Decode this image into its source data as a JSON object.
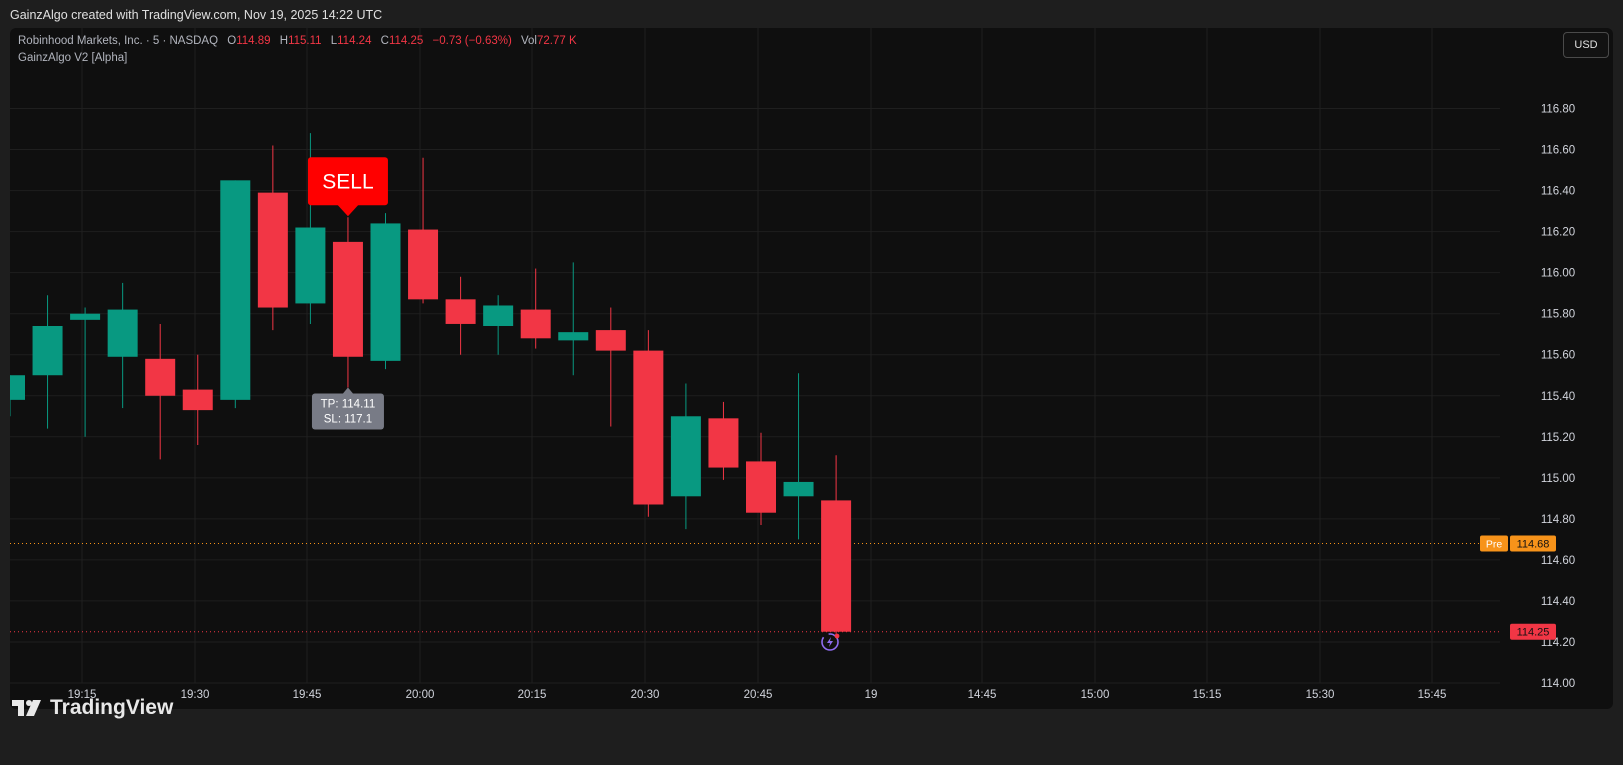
{
  "header": {
    "caption": "GainzAlgo created with TradingView.com, Nov 19, 2025 14:22 UTC"
  },
  "legend": {
    "symbol": "Robinhood Markets, Inc. · 5 · NASDAQ",
    "o_label": "O",
    "o_value": "114.89",
    "h_label": "H",
    "h_value": "115.11",
    "l_label": "L",
    "l_value": "114.24",
    "c_label": "C",
    "c_value": "114.25",
    "change": "−0.73 (−0.63%)",
    "vol_label": "Vol",
    "vol_value": "72.77 K",
    "indicator": "GainzAlgo V2 [Alpha]"
  },
  "currency_button": "USD",
  "footer": {
    "brand": "TradingView"
  },
  "colors": {
    "up": "#089981",
    "down": "#f23645",
    "pre": "#f7931a",
    "background": "#0f0f0f"
  },
  "chart_data": {
    "type": "candlestick",
    "ylim": [
      113.9,
      117.05
    ],
    "y_ticks": [
      "116.80",
      "116.60",
      "116.40",
      "116.20",
      "116.00",
      "115.80",
      "115.60",
      "115.40",
      "115.20",
      "115.00",
      "114.80",
      "114.60",
      "114.40",
      "114.20",
      "114.00"
    ],
    "x_tick_labels": [
      "19:15",
      "19:30",
      "19:45",
      "20:00",
      "20:15",
      "20:30",
      "20:45",
      "19",
      "14:45",
      "15:00",
      "15:15",
      "15:30",
      "15:45"
    ],
    "candles": [
      {
        "o": 115.38,
        "h": 115.5,
        "l": 115.3,
        "c": 115.5
      },
      {
        "o": 115.5,
        "h": 115.89,
        "l": 115.24,
        "c": 115.74
      },
      {
        "o": 115.77,
        "h": 115.83,
        "l": 115.2,
        "c": 115.8
      },
      {
        "o": 115.59,
        "h": 115.95,
        "l": 115.34,
        "c": 115.82
      },
      {
        "o": 115.58,
        "h": 115.75,
        "l": 115.09,
        "c": 115.4
      },
      {
        "o": 115.43,
        "h": 115.6,
        "l": 115.16,
        "c": 115.33
      },
      {
        "o": 115.38,
        "h": 116.45,
        "l": 115.34,
        "c": 116.45
      },
      {
        "o": 116.39,
        "h": 116.62,
        "l": 115.72,
        "c": 115.83
      },
      {
        "o": 115.85,
        "h": 116.68,
        "l": 115.75,
        "c": 116.22
      },
      {
        "o": 116.15,
        "h": 116.27,
        "l": 115.44,
        "c": 115.59
      },
      {
        "o": 115.57,
        "h": 116.29,
        "l": 115.53,
        "c": 116.24
      },
      {
        "o": 116.21,
        "h": 116.56,
        "l": 115.85,
        "c": 115.87
      },
      {
        "o": 115.87,
        "h": 115.98,
        "l": 115.6,
        "c": 115.75
      },
      {
        "o": 115.74,
        "h": 115.89,
        "l": 115.6,
        "c": 115.84
      },
      {
        "o": 115.82,
        "h": 116.02,
        "l": 115.63,
        "c": 115.68
      },
      {
        "o": 115.67,
        "h": 116.05,
        "l": 115.5,
        "c": 115.71
      },
      {
        "o": 115.72,
        "h": 115.83,
        "l": 115.25,
        "c": 115.62
      },
      {
        "o": 115.62,
        "h": 115.72,
        "l": 114.81,
        "c": 114.87
      },
      {
        "o": 114.91,
        "h": 115.46,
        "l": 114.75,
        "c": 115.3
      },
      {
        "o": 115.29,
        "h": 115.37,
        "l": 114.99,
        "c": 115.05
      },
      {
        "o": 115.08,
        "h": 115.22,
        "l": 114.77,
        "c": 114.83
      },
      {
        "o": 114.91,
        "h": 115.51,
        "l": 114.7,
        "c": 114.98
      },
      {
        "o": 114.89,
        "h": 115.11,
        "l": 114.24,
        "c": 114.25
      }
    ],
    "sell_signal": {
      "label": "SELL",
      "candle_index": 9,
      "tp_text": "TP: 114.11",
      "sl_text": "SL: 117.1"
    },
    "price_lines": [
      {
        "tag": "Pre",
        "price": 114.68,
        "label": "114.68",
        "color": "#f7931a"
      },
      {
        "tag": "",
        "price": 114.25,
        "label": "114.25",
        "color": "#f23645"
      }
    ]
  }
}
